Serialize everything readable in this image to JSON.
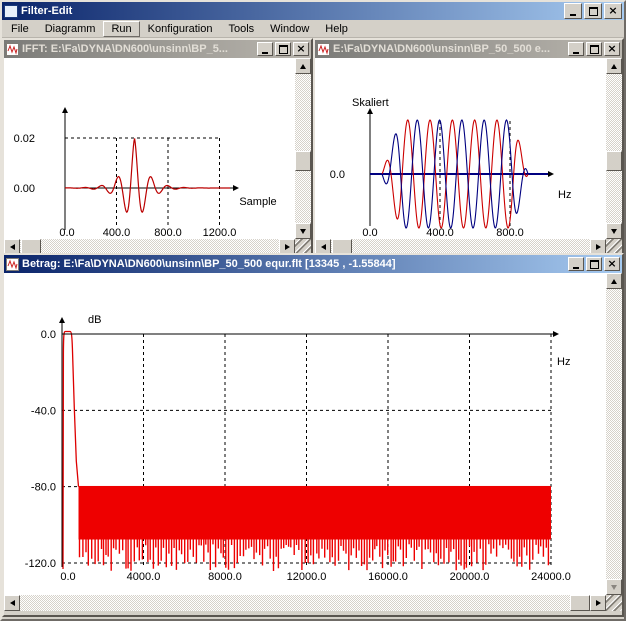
{
  "app": {
    "title": "Filter-Edit"
  },
  "menu": {
    "items": [
      "File",
      "Diagramm",
      "Run",
      "Konfiguration",
      "Tools",
      "Window",
      "Help"
    ],
    "active_item": "Run"
  },
  "windows": {
    "ifft": {
      "title": "IFFT: E:\\Fa\\DYNA\\DN600\\unsinn\\BP_5..."
    },
    "signal": {
      "title": "E:\\Fa\\DYNA\\DN600\\unsinn\\BP_50_500 e..."
    },
    "betrag": {
      "title": "Betrag: E:\\Fa\\DYNA\\DN600\\unsinn\\BP_50_500 equr.flt  [13345 , -1.55844]"
    }
  },
  "colors": {
    "active_title_left": "#0a246a",
    "active_title_right": "#a6caf0",
    "inactive_title_left": "#7b7b78",
    "inactive_title_right": "#bab6ae",
    "window_face": "#d4d0c8",
    "curve_red": "#cc0000",
    "curve_blue": "#000080",
    "fill_red": "#ee0000"
  },
  "chart_data": [
    {
      "id": "ifft",
      "type": "line",
      "xlabel": "Sample",
      "yticks": [
        {
          "value": 0.02,
          "label": "0.02"
        },
        {
          "value": 0.0,
          "label": "0.00"
        }
      ],
      "xticks": [
        {
          "value": 0,
          "label": "0.0"
        },
        {
          "value": 400,
          "label": "400.0"
        },
        {
          "value": 800,
          "label": "800.0"
        },
        {
          "value": 1200,
          "label": "1200.0"
        }
      ],
      "xlim": [
        0,
        1300
      ],
      "ylim": [
        -0.012,
        0.026
      ],
      "grid": "dashed",
      "series": [
        {
          "name": "impulse_response",
          "color": "#bb0000",
          "shape": "modulated sinc pulse",
          "center_sample": 500,
          "peak_value": 0.02,
          "ripple_period_samples": 129,
          "decay_samples": 85
        }
      ]
    },
    {
      "id": "skaliert",
      "type": "line",
      "title": "Skaliert",
      "xlabel": "Hz",
      "yticks": [
        {
          "value": 0.0,
          "label": "0.0"
        }
      ],
      "xticks": [
        {
          "value": 0,
          "label": "0.0"
        },
        {
          "value": 400,
          "label": "400.0"
        },
        {
          "value": 800,
          "label": "800.0"
        }
      ],
      "xlim": [
        0,
        1280
      ],
      "grid": "dashed",
      "series": [
        {
          "name": "signal_red",
          "color": "#cc0000",
          "shape": "windowed sine burst",
          "burst_range": [
            70,
            900
          ],
          "cycles": 6.5
        },
        {
          "name": "signal_blue",
          "color": "#000080",
          "shape": "windowed sine burst, phase shifted",
          "burst_range": [
            70,
            900
          ],
          "cycles": 6.5
        }
      ]
    },
    {
      "id": "betrag",
      "type": "line",
      "ylabel": "dB",
      "xlabel": "Hz",
      "yticks": [
        {
          "value": 0.0,
          "label": "0.0"
        },
        {
          "value": -40.0,
          "label": "-40.0"
        },
        {
          "value": -80.0,
          "label": "-80.0"
        },
        {
          "value": -120.0,
          "label": "-120.0"
        }
      ],
      "xticks": [
        {
          "value": 0,
          "label": "0.0"
        },
        {
          "value": 4000,
          "label": "4000.0"
        },
        {
          "value": 8000,
          "label": "8000.0"
        },
        {
          "value": 12000,
          "label": "12000.0"
        },
        {
          "value": 16000,
          "label": "16000.0"
        },
        {
          "value": 20000,
          "label": "20000.0"
        },
        {
          "value": 24000,
          "label": "24000.0"
        }
      ],
      "xlim": [
        0,
        24000
      ],
      "ylim": [
        -130,
        5
      ],
      "grid": "dashed",
      "series": [
        {
          "name": "magnitude_db",
          "color": "#ee0000",
          "shape": "equiripple bandpass magnitude",
          "passband_hz": [
            50,
            500
          ],
          "passband_level_db": 0,
          "stopband_level_db": -80,
          "notch_depth_db": -125
        }
      ]
    }
  ]
}
